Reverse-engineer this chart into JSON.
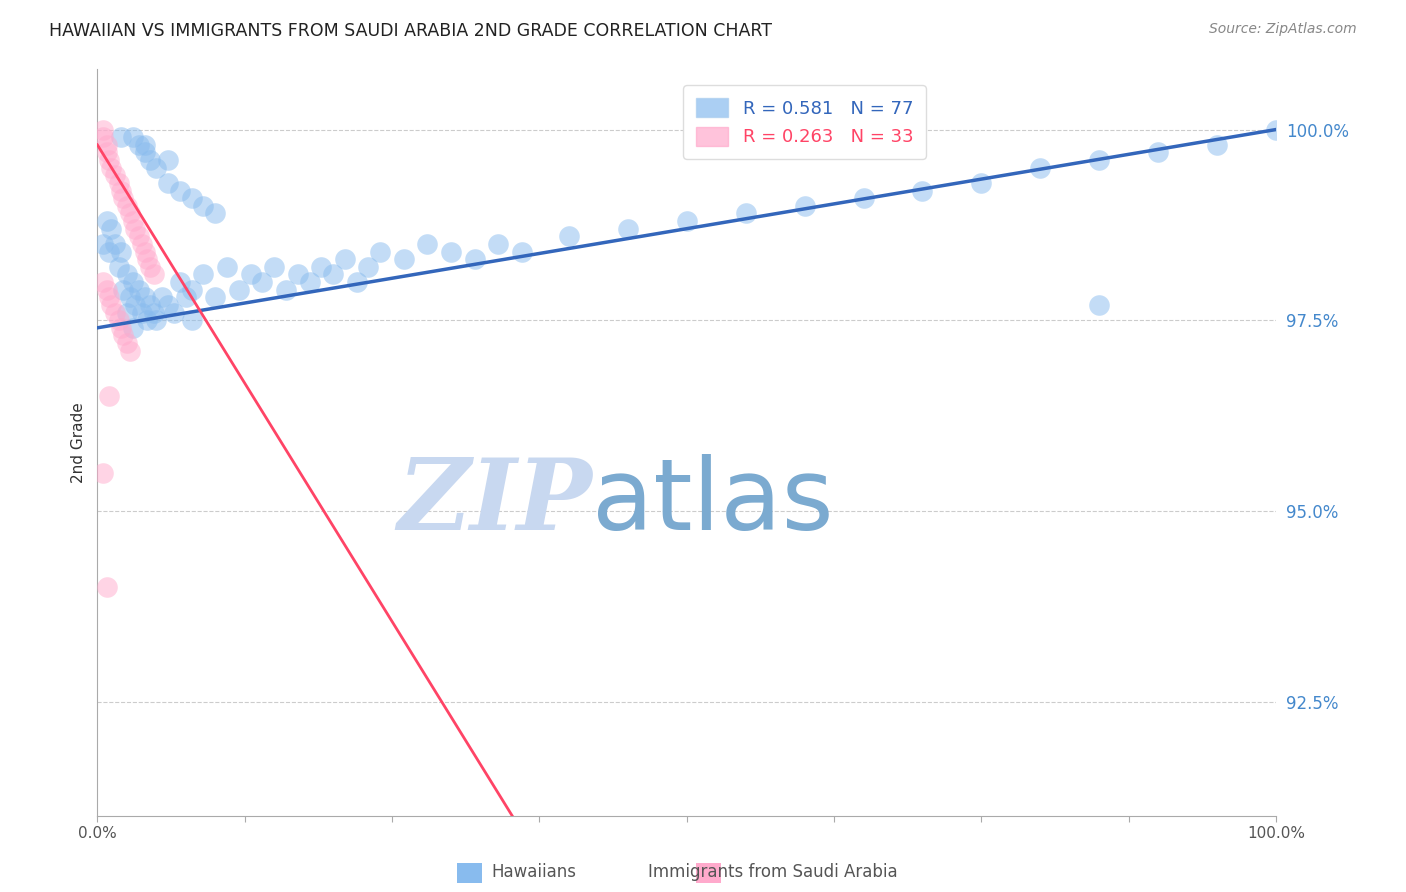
{
  "title": "HAWAIIAN VS IMMIGRANTS FROM SAUDI ARABIA 2ND GRADE CORRELATION CHART",
  "source": "Source: ZipAtlas.com",
  "ylabel": "2nd Grade",
  "yaxis_labels": [
    "100.0%",
    "97.5%",
    "95.0%",
    "92.5%"
  ],
  "yaxis_values": [
    1.0,
    0.975,
    0.95,
    0.925
  ],
  "xmin": 0.0,
  "xmax": 1.0,
  "ymin": 0.91,
  "ymax": 1.008,
  "legend_blue_label": "R = 0.581   N = 77",
  "legend_pink_label": "R = 0.263   N = 33",
  "blue_color": "#88BBEE",
  "pink_color": "#FFAACC",
  "trend_blue_color": "#3366BB",
  "trend_pink_color": "#FF4466",
  "watermark_zip": "ZIP",
  "watermark_atlas": "atlas",
  "watermark_color_zip": "#C8D8F0",
  "watermark_color_atlas": "#7BAAD0",
  "bottom_legend_hawaiians": "Hawaiians",
  "bottom_legend_saudi": "Immigrants from Saudi Arabia",
  "blue_scatter_x": [
    0.005,
    0.008,
    0.01,
    0.012,
    0.015,
    0.018,
    0.02,
    0.022,
    0.025,
    0.028,
    0.03,
    0.032,
    0.035,
    0.038,
    0.04,
    0.042,
    0.045,
    0.048,
    0.05,
    0.055,
    0.06,
    0.065,
    0.07,
    0.075,
    0.08,
    0.09,
    0.1,
    0.11,
    0.12,
    0.13,
    0.14,
    0.15,
    0.16,
    0.17,
    0.18,
    0.19,
    0.2,
    0.21,
    0.22,
    0.23,
    0.24,
    0.26,
    0.28,
    0.3,
    0.32,
    0.34,
    0.36,
    0.4,
    0.45,
    0.5,
    0.55,
    0.6,
    0.65,
    0.7,
    0.75,
    0.8,
    0.85,
    0.9,
    0.95,
    1.0,
    0.03,
    0.035,
    0.04,
    0.045,
    0.05,
    0.06,
    0.07,
    0.08,
    0.09,
    0.1,
    0.025,
    0.03,
    0.85,
    0.02,
    0.04,
    0.06,
    0.08
  ],
  "blue_scatter_y": [
    0.985,
    0.988,
    0.984,
    0.987,
    0.985,
    0.982,
    0.984,
    0.979,
    0.981,
    0.978,
    0.98,
    0.977,
    0.979,
    0.976,
    0.978,
    0.975,
    0.977,
    0.976,
    0.975,
    0.978,
    0.977,
    0.976,
    0.98,
    0.978,
    0.979,
    0.981,
    0.978,
    0.982,
    0.979,
    0.981,
    0.98,
    0.982,
    0.979,
    0.981,
    0.98,
    0.982,
    0.981,
    0.983,
    0.98,
    0.982,
    0.984,
    0.983,
    0.985,
    0.984,
    0.983,
    0.985,
    0.984,
    0.986,
    0.987,
    0.988,
    0.989,
    0.99,
    0.991,
    0.992,
    0.993,
    0.995,
    0.996,
    0.997,
    0.998,
    1.0,
    0.999,
    0.998,
    0.997,
    0.996,
    0.995,
    0.993,
    0.992,
    0.991,
    0.99,
    0.989,
    0.976,
    0.974,
    0.977,
    0.999,
    0.998,
    0.996,
    0.975
  ],
  "pink_scatter_x": [
    0.005,
    0.005,
    0.008,
    0.008,
    0.01,
    0.012,
    0.015,
    0.018,
    0.02,
    0.022,
    0.025,
    0.028,
    0.03,
    0.032,
    0.035,
    0.038,
    0.04,
    0.042,
    0.045,
    0.048,
    0.005,
    0.008,
    0.01,
    0.012,
    0.015,
    0.018,
    0.02,
    0.022,
    0.025,
    0.028,
    0.005,
    0.008,
    0.01
  ],
  "pink_scatter_y": [
    1.0,
    0.999,
    0.998,
    0.997,
    0.996,
    0.995,
    0.994,
    0.993,
    0.992,
    0.991,
    0.99,
    0.989,
    0.988,
    0.987,
    0.986,
    0.985,
    0.984,
    0.983,
    0.982,
    0.981,
    0.98,
    0.979,
    0.978,
    0.977,
    0.976,
    0.975,
    0.974,
    0.973,
    0.972,
    0.971,
    0.955,
    0.94,
    0.965
  ]
}
